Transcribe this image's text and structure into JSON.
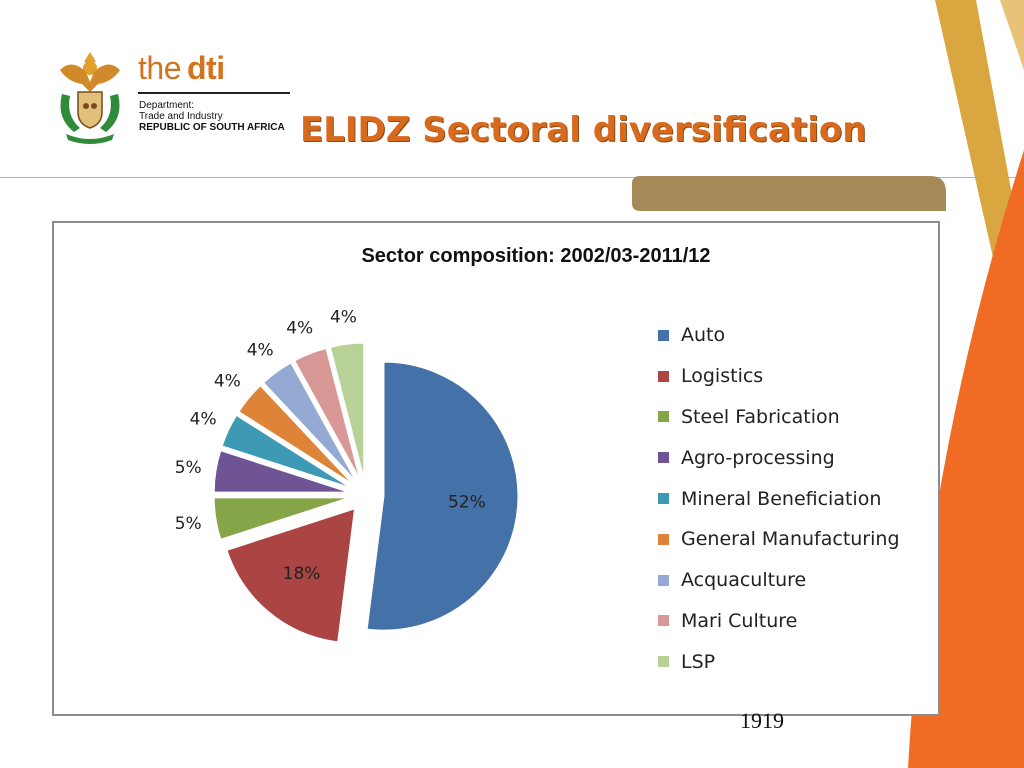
{
  "header": {
    "brand_the": "the",
    "brand_dti": "dti",
    "org_line1": "Department:",
    "org_line2": "Trade and Industry",
    "org_line3": "REPUBLIC OF SOUTH AFRICA"
  },
  "slide": {
    "title": "ELIDZ Sectoral diversification",
    "page_number": "1919"
  },
  "colors": {
    "title_orange": "#d86a1e",
    "brand_orange": "#d4731e",
    "band_gold": "#c9962f",
    "band_orange": "#f06c24",
    "header_bar": "#a58957"
  },
  "icons": {
    "logo": "south-africa-coat-of-arms-icon"
  },
  "chart_data": {
    "type": "pie",
    "title": "Sector composition:  2002/03-2011/12",
    "legend_position": "right",
    "slices": [
      {
        "label": "Auto",
        "value": 52,
        "display": "52%",
        "color": "#4472a8"
      },
      {
        "label": "Logistics",
        "value": 18,
        "display": "18%",
        "color": "#aa4543"
      },
      {
        "label": "Steel Fabrication",
        "value": 5,
        "display": "5%",
        "color": "#86a549"
      },
      {
        "label": "Agro-processing",
        "value": 5,
        "display": "5%",
        "color": "#6e5494"
      },
      {
        "label": "Mineral Beneficiation",
        "value": 4,
        "display": "4%",
        "color": "#3e9ab4"
      },
      {
        "label": "General Manufacturing",
        "value": 4,
        "display": "4%",
        "color": "#de8438"
      },
      {
        "label": "Acquaculture",
        "value": 4,
        "display": "4%",
        "color": "#94aad4"
      },
      {
        "label": "Mari Culture",
        "value": 4,
        "display": "4%",
        "color": "#d79896"
      },
      {
        "label": "LSP",
        "value": 4,
        "display": "4%",
        "color": "#b8d197"
      }
    ]
  }
}
